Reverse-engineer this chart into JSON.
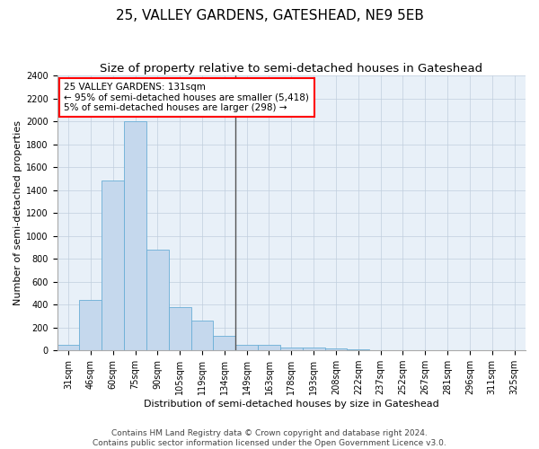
{
  "title": "25, VALLEY GARDENS, GATESHEAD, NE9 5EB",
  "subtitle": "Size of property relative to semi-detached houses in Gateshead",
  "xlabel": "Distribution of semi-detached houses by size in Gateshead",
  "ylabel": "Number of semi-detached properties",
  "annotation_line1": "25 VALLEY GARDENS: 131sqm",
  "annotation_line2": "← 95% of semi-detached houses are smaller (5,418)",
  "annotation_line3": "5% of semi-detached houses are larger (298) →",
  "footer_line1": "Contains HM Land Registry data © Crown copyright and database right 2024.",
  "footer_line2": "Contains public sector information licensed under the Open Government Licence v3.0.",
  "categories": [
    "31sqm",
    "46sqm",
    "60sqm",
    "75sqm",
    "90sqm",
    "105sqm",
    "119sqm",
    "134sqm",
    "149sqm",
    "163sqm",
    "178sqm",
    "193sqm",
    "208sqm",
    "222sqm",
    "237sqm",
    "252sqm",
    "267sqm",
    "281sqm",
    "296sqm",
    "311sqm",
    "325sqm"
  ],
  "values": [
    45,
    440,
    1480,
    2000,
    880,
    375,
    258,
    130,
    45,
    45,
    28,
    22,
    18,
    10,
    0,
    0,
    0,
    0,
    0,
    0,
    0
  ],
  "bar_color": "#c5d8ed",
  "bar_edge_color": "#6aaed6",
  "vline_color": "#555555",
  "background_color": "#ffffff",
  "plot_bg_color": "#e8f0f8",
  "grid_color": "#c0cedd",
  "ylim": [
    0,
    2400
  ],
  "yticks": [
    0,
    200,
    400,
    600,
    800,
    1000,
    1200,
    1400,
    1600,
    1800,
    2000,
    2200,
    2400
  ],
  "title_fontsize": 11,
  "subtitle_fontsize": 9.5,
  "axis_label_fontsize": 8,
  "tick_fontsize": 7,
  "annotation_fontsize": 7.5,
  "footer_fontsize": 6.5
}
